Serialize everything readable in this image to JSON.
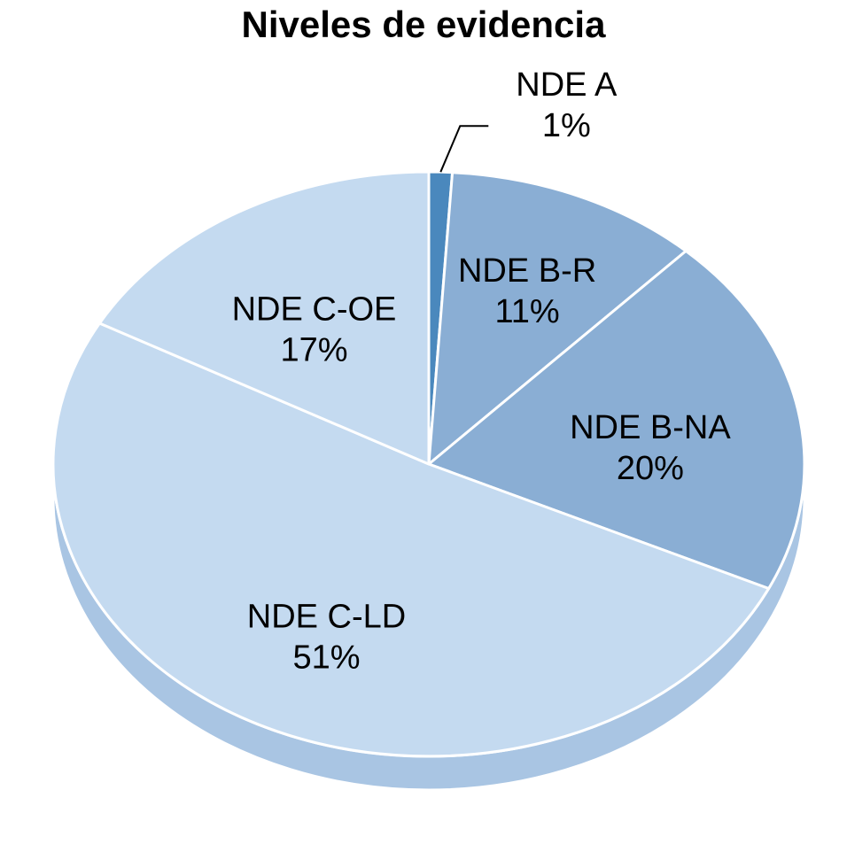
{
  "chart_data": {
    "type": "pie",
    "title": "Niveles de evidencia",
    "slices": [
      {
        "label": "NDE A",
        "value": 1,
        "value_label": "1%",
        "color": "#4a88bd"
      },
      {
        "label": "NDE B-R",
        "value": 11,
        "value_label": "11%",
        "color": "#8aaed4"
      },
      {
        "label": "NDE B-NA",
        "value": 20,
        "value_label": "20%",
        "color": "#8aaed4"
      },
      {
        "label": "NDE C-LD",
        "value": 51,
        "value_label": "51%",
        "color": "#c4daf0"
      },
      {
        "label": "NDE C-OE",
        "value": 17,
        "value_label": "17%",
        "color": "#c4daf0"
      }
    ],
    "start_angle_deg": 0,
    "direction": "clockwise",
    "style": "3d-tilted",
    "legend": "none",
    "label_placement": "inside; leader line for NDE A"
  }
}
